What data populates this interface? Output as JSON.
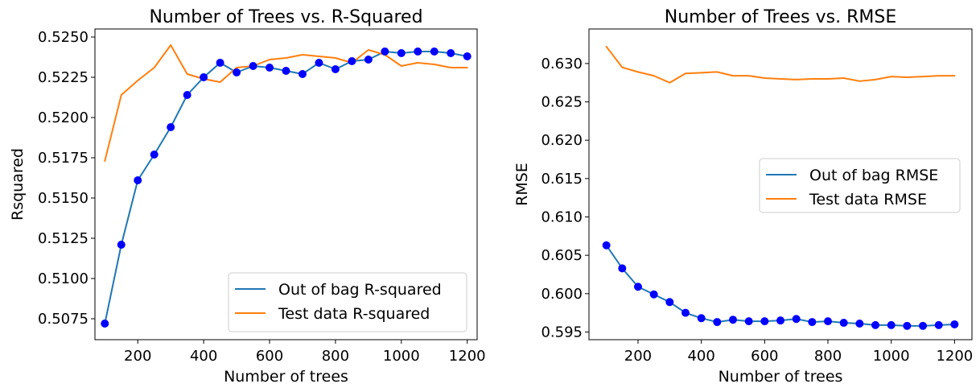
{
  "colors": {
    "oob_line": "#1f77b4",
    "test_line": "#ff7f0e",
    "marker": "#0000ff"
  },
  "chart_data": [
    {
      "type": "line",
      "title": "Number of Trees vs. R-Squared",
      "xlabel": "Number of trees",
      "ylabel": "Rsquared",
      "xlim": [
        70,
        1230
      ],
      "ylim": [
        0.5062,
        0.5255
      ],
      "xticks": [
        200,
        400,
        600,
        800,
        1000,
        1200
      ],
      "xtick_labels": [
        "200",
        "400",
        "600",
        "800",
        "1000",
        "1200"
      ],
      "yticks": [
        0.5075,
        0.51,
        0.5125,
        0.515,
        0.5175,
        0.52,
        0.5225,
        0.525
      ],
      "ytick_labels": [
        "0.5075",
        "0.5100",
        "0.5125",
        "0.5150",
        "0.5175",
        "0.5200",
        "0.5225",
        "0.5250"
      ],
      "legend_position": "lower-right",
      "x": [
        100,
        150,
        200,
        250,
        300,
        350,
        400,
        450,
        500,
        550,
        600,
        650,
        700,
        750,
        800,
        850,
        900,
        950,
        1000,
        1050,
        1100,
        1150,
        1200
      ],
      "series": [
        {
          "name": "Out of bag R-squared",
          "markers": true,
          "values": [
            0.5072,
            0.5121,
            0.5161,
            0.5177,
            0.5194,
            0.5214,
            0.5225,
            0.5234,
            0.5228,
            0.5232,
            0.5231,
            0.5229,
            0.5227,
            0.5234,
            0.523,
            0.5235,
            0.5236,
            0.5241,
            0.524,
            0.5241,
            0.5241,
            0.524,
            0.5238
          ]
        },
        {
          "name": "Test data R-squared",
          "markers": false,
          "values": [
            0.5173,
            0.5214,
            0.5223,
            0.5231,
            0.5245,
            0.5227,
            0.5224,
            0.5222,
            0.5231,
            0.5232,
            0.5236,
            0.5237,
            0.5239,
            0.5238,
            0.5237,
            0.5234,
            0.5242,
            0.5239,
            0.5232,
            0.5234,
            0.5233,
            0.5231,
            0.5231
          ]
        }
      ]
    },
    {
      "type": "line",
      "title": "Number of Trees vs. RMSE",
      "xlabel": "Number of trees",
      "ylabel": "RMSE",
      "xlim": [
        45,
        1255
      ],
      "ylim": [
        0.594,
        0.6345
      ],
      "xticks": [
        200,
        400,
        600,
        800,
        1000,
        1200
      ],
      "xtick_labels": [
        "200",
        "400",
        "600",
        "800",
        "1000",
        "1200"
      ],
      "yticks": [
        0.595,
        0.6,
        0.605,
        0.61,
        0.615,
        0.62,
        0.625,
        0.63
      ],
      "ytick_labels": [
        "0.595",
        "0.600",
        "0.605",
        "0.610",
        "0.615",
        "0.620",
        "0.625",
        "0.630"
      ],
      "legend_position": "center-right",
      "x": [
        100,
        150,
        200,
        250,
        300,
        350,
        400,
        450,
        500,
        550,
        600,
        650,
        700,
        750,
        800,
        850,
        900,
        950,
        1000,
        1050,
        1100,
        1150,
        1200
      ],
      "series": [
        {
          "name": "Out of bag RMSE",
          "markers": true,
          "values": [
            0.6063,
            0.6033,
            0.6009,
            0.5999,
            0.5989,
            0.5975,
            0.5968,
            0.5963,
            0.5966,
            0.5964,
            0.5964,
            0.5965,
            0.5967,
            0.5963,
            0.5964,
            0.5962,
            0.5961,
            0.5959,
            0.5959,
            0.5958,
            0.5958,
            0.5959,
            0.596
          ]
        },
        {
          "name": "Test data RMSE",
          "markers": false,
          "values": [
            0.6322,
            0.6295,
            0.6289,
            0.6284,
            0.6275,
            0.6287,
            0.6288,
            0.6289,
            0.6284,
            0.6284,
            0.6281,
            0.628,
            0.6279,
            0.628,
            0.628,
            0.6281,
            0.6277,
            0.6279,
            0.6283,
            0.6282,
            0.6283,
            0.6284,
            0.6284
          ]
        }
      ]
    }
  ]
}
